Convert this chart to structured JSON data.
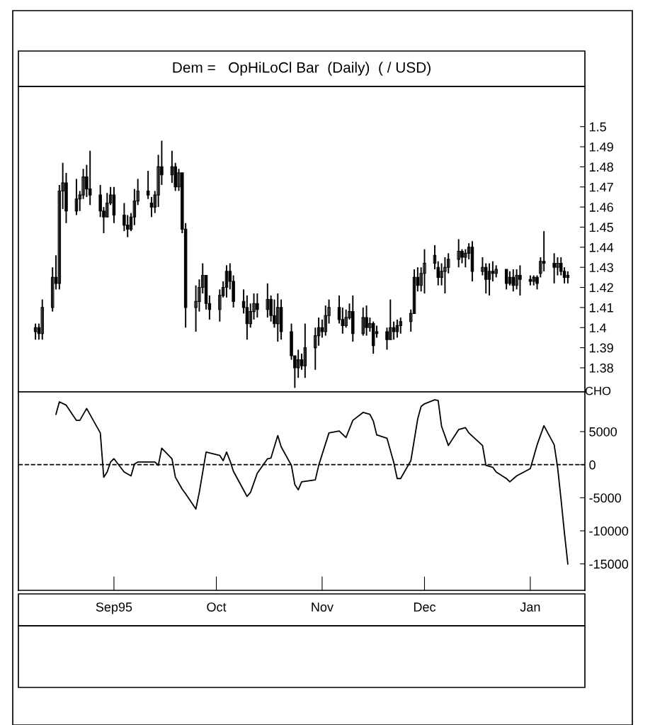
{
  "chart_data": [
    {
      "type": "candlestick",
      "title": "Dem =   OpHiLoCl Bar  (Daily)  ( / USD)",
      "color": "#000000",
      "x": [
        "1995-08-09",
        "1995-08-10",
        "1995-08-11",
        "1995-08-14",
        "1995-08-15",
        "1995-08-16",
        "1995-08-17",
        "1995-08-18",
        "1995-08-21",
        "1995-08-22",
        "1995-08-23",
        "1995-08-24",
        "1995-08-25",
        "1995-08-28",
        "1995-08-29",
        "1995-08-30",
        "1995-08-31",
        "1995-09-01",
        "1995-09-04",
        "1995-09-05",
        "1995-09-06",
        "1995-09-07",
        "1995-09-08",
        "1995-09-11",
        "1995-09-12",
        "1995-09-13",
        "1995-09-14",
        "1995-09-15",
        "1995-09-18",
        "1995-09-19",
        "1995-09-20",
        "1995-09-21",
        "1995-09-22",
        "1995-09-25",
        "1995-09-26",
        "1995-09-27",
        "1995-09-28",
        "1995-09-29",
        "1995-10-02",
        "1995-10-03",
        "1995-10-04",
        "1995-10-05",
        "1995-10-06",
        "1995-10-09",
        "1995-10-10",
        "1995-10-11",
        "1995-10-12",
        "1995-10-13",
        "1995-10-16",
        "1995-10-17",
        "1995-10-18",
        "1995-10-19",
        "1995-10-20",
        "1995-10-23",
        "1995-10-24",
        "1995-10-25",
        "1995-10-26",
        "1995-10-27",
        "1995-10-30",
        "1995-10-31",
        "1995-11-01",
        "1995-11-02",
        "1995-11-03",
        "1995-11-06",
        "1995-11-07",
        "1995-11-08",
        "1995-11-09",
        "1995-11-10",
        "1995-11-13",
        "1995-11-14",
        "1995-11-15",
        "1995-11-16",
        "1995-11-17",
        "1995-11-20",
        "1995-11-21",
        "1995-11-22",
        "1995-11-23",
        "1995-11-24",
        "1995-11-27",
        "1995-11-28",
        "1995-11-29",
        "1995-11-30",
        "1995-12-01",
        "1995-12-04",
        "1995-12-05",
        "1995-12-06",
        "1995-12-07",
        "1995-12-08",
        "1995-12-11",
        "1995-12-12",
        "1995-12-13",
        "1995-12-14",
        "1995-12-15",
        "1995-12-18",
        "1995-12-19",
        "1995-12-20",
        "1995-12-21",
        "1995-12-22",
        "1995-12-25",
        "1995-12-26",
        "1995-12-27",
        "1995-12-28",
        "1995-12-29",
        "1996-01-01",
        "1996-01-02",
        "1996-01-03",
        "1996-01-04",
        "1996-01-05",
        "1996-01-08",
        "1996-01-09",
        "1996-01-10",
        "1996-01-11",
        "1996-01-12"
      ],
      "ohlc": [
        [
          1.398,
          1.402,
          1.394,
          1.4
        ],
        [
          1.4,
          1.402,
          1.394,
          1.397
        ],
        [
          1.397,
          1.414,
          1.394,
          1.41
        ],
        [
          1.41,
          1.43,
          1.408,
          1.425
        ],
        [
          1.425,
          1.436,
          1.419,
          1.422
        ],
        [
          1.422,
          1.471,
          1.419,
          1.468
        ],
        [
          1.468,
          1.482,
          1.459,
          1.472
        ],
        [
          1.472,
          1.477,
          1.452,
          1.458
        ],
        [
          1.458,
          1.474,
          1.456,
          1.464
        ],
        [
          1.464,
          1.468,
          1.458,
          1.466
        ],
        [
          1.466,
          1.479,
          1.464,
          1.475
        ],
        [
          1.475,
          1.481,
          1.465,
          1.469
        ],
        [
          1.469,
          1.488,
          1.461,
          1.466
        ],
        [
          1.466,
          1.471,
          1.455,
          1.458
        ],
        [
          1.458,
          1.46,
          1.447,
          1.455
        ],
        [
          1.455,
          1.467,
          1.455,
          1.462
        ],
        [
          1.462,
          1.47,
          1.461,
          1.466
        ],
        [
          1.466,
          1.47,
          1.452,
          1.456
        ],
        [
          1.456,
          1.462,
          1.448,
          1.451
        ],
        [
          1.451,
          1.456,
          1.445,
          1.449
        ],
        [
          1.449,
          1.457,
          1.448,
          1.455
        ],
        [
          1.455,
          1.469,
          1.451,
          1.463
        ],
        [
          1.463,
          1.474,
          1.461,
          1.468
        ],
        [
          1.468,
          1.478,
          1.464,
          1.466
        ],
        [
          1.462,
          1.465,
          1.455,
          1.46
        ],
        [
          1.46,
          1.468,
          1.457,
          1.466
        ],
        [
          1.466,
          1.486,
          1.46,
          1.48
        ],
        [
          1.48,
          1.493,
          1.471,
          1.476
        ],
        [
          1.476,
          1.488,
          1.472,
          1.48
        ],
        [
          1.48,
          1.482,
          1.468,
          1.47
        ],
        [
          1.47,
          1.479,
          1.468,
          1.477
        ],
        [
          1.477,
          1.477,
          1.447,
          1.449
        ],
        [
          1.449,
          1.452,
          1.4,
          1.41
        ],
        [
          1.41,
          1.421,
          1.398,
          1.413
        ],
        [
          1.413,
          1.424,
          1.408,
          1.42
        ],
        [
          1.42,
          1.432,
          1.417,
          1.426
        ],
        [
          1.426,
          1.426,
          1.409,
          1.412
        ],
        [
          1.412,
          1.416,
          1.404,
          1.409
        ],
        [
          1.409,
          1.419,
          1.403,
          1.416
        ],
        [
          1.416,
          1.423,
          1.415,
          1.42
        ],
        [
          1.42,
          1.431,
          1.415,
          1.428
        ],
        [
          1.428,
          1.432,
          1.419,
          1.423
        ],
        [
          1.423,
          1.426,
          1.41,
          1.413
        ],
        [
          1.413,
          1.419,
          1.407,
          1.41
        ],
        [
          1.41,
          1.416,
          1.394,
          1.402
        ],
        [
          1.402,
          1.412,
          1.4,
          1.408
        ],
        [
          1.408,
          1.417,
          1.404,
          1.412
        ],
        [
          1.412,
          1.417,
          1.405,
          1.409
        ],
        [
          1.409,
          1.422,
          1.405,
          1.414
        ],
        [
          1.414,
          1.416,
          1.403,
          1.406
        ],
        [
          1.406,
          1.414,
          1.4,
          1.402
        ],
        [
          1.402,
          1.417,
          1.393,
          1.41
        ],
        [
          1.41,
          1.414,
          1.394,
          1.398
        ],
        [
          1.398,
          1.402,
          1.384,
          1.386
        ],
        [
          1.386,
          1.386,
          1.37,
          1.38
        ],
        [
          1.38,
          1.389,
          1.375,
          1.384
        ],
        [
          1.384,
          1.387,
          1.379,
          1.381
        ],
        [
          1.381,
          1.402,
          1.375,
          1.39
        ],
        [
          1.39,
          1.4,
          1.379,
          1.396
        ],
        [
          1.396,
          1.405,
          1.391,
          1.4
        ],
        [
          1.4,
          1.404,
          1.395,
          1.398
        ],
        [
          1.398,
          1.411,
          1.396,
          1.406
        ],
        [
          1.406,
          1.414,
          1.402,
          1.41
        ],
        [
          1.41,
          1.416,
          1.402,
          1.404
        ],
        [
          1.404,
          1.41,
          1.397,
          1.401
        ],
        [
          1.401,
          1.409,
          1.4,
          1.405
        ],
        [
          1.405,
          1.412,
          1.404,
          1.408
        ],
        [
          1.408,
          1.416,
          1.393,
          1.397
        ],
        [
          1.397,
          1.41,
          1.396,
          1.405
        ],
        [
          1.405,
          1.411,
          1.396,
          1.4
        ],
        [
          1.4,
          1.405,
          1.398,
          1.402
        ],
        [
          1.402,
          1.403,
          1.387,
          1.391
        ],
        [
          1.397,
          1.401,
          1.395,
          1.398
        ],
        [
          1.398,
          1.4,
          1.389,
          1.394
        ],
        [
          1.394,
          1.414,
          1.394,
          1.4
        ],
        [
          1.4,
          1.403,
          1.394,
          1.398
        ],
        [
          1.398,
          1.404,
          1.395,
          1.401
        ],
        [
          1.401,
          1.405,
          1.397,
          1.403
        ],
        [
          1.403,
          1.409,
          1.398,
          1.407
        ],
        [
          1.407,
          1.429,
          1.407,
          1.425
        ],
        [
          1.425,
          1.43,
          1.418,
          1.421
        ],
        [
          1.421,
          1.43,
          1.418,
          1.427
        ],
        [
          1.427,
          1.439,
          1.417,
          1.432
        ],
        [
          1.432,
          1.441,
          1.429,
          1.436
        ],
        [
          1.43,
          1.433,
          1.421,
          1.425
        ],
        [
          1.425,
          1.432,
          1.421,
          1.428
        ],
        [
          1.428,
          1.435,
          1.417,
          1.43
        ],
        [
          1.43,
          1.437,
          1.427,
          1.434
        ],
        [
          1.434,
          1.444,
          1.43,
          1.438
        ],
        [
          1.438,
          1.439,
          1.432,
          1.435
        ],
        [
          1.435,
          1.439,
          1.43,
          1.437
        ],
        [
          1.437,
          1.442,
          1.434,
          1.44
        ],
        [
          1.44,
          1.443,
          1.423,
          1.428
        ],
        [
          1.428,
          1.435,
          1.426,
          1.43
        ],
        [
          1.43,
          1.432,
          1.417,
          1.424
        ],
        [
          1.424,
          1.432,
          1.416,
          1.428
        ],
        [
          1.428,
          1.433,
          1.423,
          1.427
        ],
        [
          1.427,
          1.431,
          1.425,
          1.429
        ],
        [
          1.429,
          1.429,
          1.419,
          1.422
        ],
        [
          1.422,
          1.428,
          1.421,
          1.425
        ],
        [
          1.425,
          1.429,
          1.418,
          1.421
        ],
        [
          1.421,
          1.429,
          1.419,
          1.426
        ],
        [
          1.426,
          1.431,
          1.416,
          1.424
        ],
        [
          1.424,
          1.426,
          1.421,
          1.423
        ],
        [
          1.423,
          1.426,
          1.421,
          1.425
        ],
        [
          1.425,
          1.426,
          1.419,
          1.422
        ],
        [
          1.427,
          1.435,
          1.425,
          1.433
        ],
        [
          1.433,
          1.448,
          1.428,
          1.432
        ],
        [
          1.432,
          1.437,
          1.422,
          1.43
        ],
        [
          1.43,
          1.435,
          1.426,
          1.432
        ],
        [
          1.432,
          1.435,
          1.426,
          1.428
        ],
        [
          1.428,
          1.43,
          1.422,
          1.425
        ],
        [
          1.425,
          1.428,
          1.422,
          1.426
        ]
      ],
      "xlim": [
        "1995-08-04",
        "1996-01-17"
      ],
      "ylim": [
        1.368,
        1.52
      ],
      "yticks": [
        1.38,
        1.39,
        1.4,
        1.41,
        1.42,
        1.43,
        1.44,
        1.45,
        1.46,
        1.47,
        1.48,
        1.49,
        1.5
      ],
      "tick_labels": "y",
      "grid": false
    },
    {
      "type": "line",
      "ylabel": "CHO",
      "line_style": "solid",
      "marker": "none",
      "series": [
        {
          "color": "#000000",
          "x": [
            "1995-08-15",
            "1995-08-16",
            "1995-08-18",
            "1995-08-21",
            "1995-08-22",
            "1995-08-24",
            "1995-08-28",
            "1995-08-29",
            "1995-08-30",
            "1995-08-31",
            "1995-09-01",
            "1995-09-04",
            "1995-09-06",
            "1995-09-07",
            "1995-09-08",
            "1995-09-13",
            "1995-09-14",
            "1995-09-15",
            "1995-09-18",
            "1995-09-19",
            "1995-09-21",
            "1995-09-22",
            "1995-09-25",
            "1995-09-26",
            "1995-09-28",
            "1995-10-02",
            "1995-10-03",
            "1995-10-04",
            "1995-10-05",
            "1995-10-06",
            "1995-10-10",
            "1995-10-11",
            "1995-10-13",
            "1995-10-16",
            "1995-10-17",
            "1995-10-19",
            "1995-10-20",
            "1995-10-23",
            "1995-10-24",
            "1995-10-25",
            "1995-10-26",
            "1995-10-30",
            "1995-10-31",
            "1995-11-03",
            "1995-11-06",
            "1995-11-08",
            "1995-11-10",
            "1995-11-13",
            "1995-11-15",
            "1995-11-16",
            "1995-11-17",
            "1995-11-20",
            "1995-11-22",
            "1995-11-23",
            "1995-11-24",
            "1995-11-27",
            "1995-11-29",
            "1995-11-30",
            "1995-12-01",
            "1995-12-04",
            "1995-12-05",
            "1995-12-06",
            "1995-12-08",
            "1995-12-11",
            "1995-12-13",
            "1995-12-14",
            "1995-12-18",
            "1995-12-19",
            "1995-12-21",
            "1995-12-22",
            "1995-12-25",
            "1995-12-26",
            "1995-12-28",
            "1996-01-01",
            "1996-01-02",
            "1996-01-03",
            "1996-01-05",
            "1996-01-08",
            "1996-01-09",
            "1996-01-10",
            "1996-01-11",
            "1996-01-12"
          ],
          "values": [
            7600,
            9500,
            9000,
            6700,
            6700,
            8500,
            4800,
            -1900,
            -1100,
            400,
            900,
            -1100,
            -1700,
            100,
            400,
            400,
            -100,
            2500,
            900,
            -1900,
            -3700,
            -4400,
            -6700,
            -4200,
            1900,
            1400,
            600,
            1900,
            600,
            -1000,
            -4800,
            -4200,
            -1300,
            900,
            1000,
            4400,
            2700,
            -100,
            -3000,
            -3800,
            -2600,
            -2300,
            -100,
            4800,
            5100,
            4100,
            6700,
            7900,
            7600,
            6600,
            4500,
            4000,
            300,
            -2100,
            -2100,
            600,
            6900,
            8800,
            9200,
            9800,
            9700,
            5800,
            2900,
            5300,
            5600,
            4800,
            2900,
            -100,
            -400,
            -1100,
            -2100,
            -2600,
            -1700,
            -600,
            1200,
            3000,
            5900,
            3000,
            -400,
            -5200,
            -10300,
            -15000
          ]
        }
      ],
      "xlim": [
        "1995-08-04",
        "1996-01-17"
      ],
      "xticks": [
        {
          "value": "1995-09-01",
          "label": "Sep95"
        },
        {
          "value": "1995-10-01",
          "label": "Oct"
        },
        {
          "value": "1995-11-01",
          "label": "Nov"
        },
        {
          "value": "1995-12-01",
          "label": "Dec"
        },
        {
          "value": "1996-01-01",
          "label": "Jan"
        }
      ],
      "ylim": [
        -19000,
        11000
      ],
      "yticks": [
        5000,
        0,
        -5000,
        -10000,
        -15000
      ],
      "ref_lines": [
        {
          "axis": "y",
          "value": 0,
          "line_style": "dashed",
          "color": "#000000"
        }
      ],
      "grid": false
    }
  ]
}
